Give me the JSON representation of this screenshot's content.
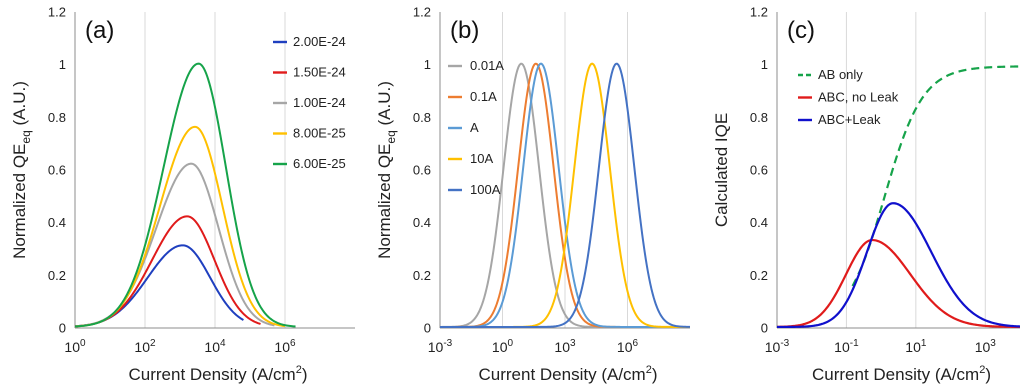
{
  "chart_data": [
    {
      "type": "line",
      "panel_label": "(a)",
      "xlabel": "Current Density (A/cm",
      "xlabel_sup": "2",
      "xlabel_tail": ")",
      "ylabel": "Normalized QE",
      "ylabel_sub": "eq",
      "ylabel_tail": " (A.U.)",
      "x_scale": "log",
      "xlim": [
        1,
        100000000.0
      ],
      "x_ticks": [
        {
          "base": "10",
          "exp": "0"
        },
        {
          "base": "10",
          "exp": "2"
        },
        {
          "base": "10",
          "exp": "4"
        },
        {
          "base": "10",
          "exp": "6"
        }
      ],
      "ylim": [
        0,
        1.2
      ],
      "y_ticks": [
        "0",
        "0.2",
        "0.4",
        "0.6",
        "0.8",
        "1",
        "1.2"
      ],
      "grid": "vertical",
      "legend_position": "top-right",
      "series": [
        {
          "name": "2.00E-24",
          "color": "#1f3fbf",
          "peak_x": 1200,
          "peak_y": 0.31,
          "x_end": 65000
        },
        {
          "name": "1.50E-24",
          "color": "#e01b1b",
          "peak_x": 1600,
          "peak_y": 0.42,
          "x_end": 200000
        },
        {
          "name": "1.00E-24",
          "color": "#a6a6a6",
          "peak_x": 2100,
          "peak_y": 0.62,
          "x_end": 500000
        },
        {
          "name": "8.00E-25",
          "color": "#ffc000",
          "peak_x": 2700,
          "peak_y": 0.76,
          "x_end": 1000000
        },
        {
          "name": "6.00E-25",
          "color": "#16a34a",
          "peak_x": 3400,
          "peak_y": 1.0,
          "x_end": 2000000
        }
      ]
    },
    {
      "type": "line",
      "panel_label": "(b)",
      "xlabel": "Current Density (A/cm",
      "xlabel_sup": "2",
      "xlabel_tail": ")",
      "ylabel": "Normalized QE",
      "ylabel_sub": "eq",
      "ylabel_tail": " (A.U.)",
      "x_scale": "log",
      "xlim": [
        0.001,
        1000000000.0
      ],
      "x_ticks": [
        {
          "base": "10",
          "exp": "-3"
        },
        {
          "base": "10",
          "exp": "0"
        },
        {
          "base": "10",
          "exp": "3"
        },
        {
          "base": "10",
          "exp": "6"
        }
      ],
      "ylim": [
        0,
        1.2
      ],
      "y_ticks": [
        "0",
        "0.2",
        "0.4",
        "0.6",
        "0.8",
        "1",
        "1.2"
      ],
      "grid": "vertical",
      "legend_position": "top-left",
      "series": [
        {
          "name": "0.01A",
          "color": "#a6a6a6",
          "peak_x": 8,
          "peak_y": 1.0
        },
        {
          "name": "0.1A",
          "color": "#ed7d31",
          "peak_x": 40,
          "peak_y": 1.0
        },
        {
          "name": "A",
          "color": "#5b9bd5",
          "peak_x": 70,
          "peak_y": 1.0
        },
        {
          "name": "10A",
          "color": "#ffc000",
          "peak_x": 20000,
          "peak_y": 1.0
        },
        {
          "name": "100A",
          "color": "#4472c4",
          "peak_x": 300000,
          "peak_y": 1.0
        }
      ]
    },
    {
      "type": "line",
      "panel_label": "(c)",
      "xlabel": "Current Density (A/cm",
      "xlabel_sup": "2",
      "xlabel_tail": ")",
      "ylabel": "Calculated IQE",
      "x_scale": "log",
      "xlim": [
        0.001,
        10000
      ],
      "x_ticks": [
        {
          "base": "10",
          "exp": "-3"
        },
        {
          "base": "10",
          "exp": "-1"
        },
        {
          "base": "10",
          "exp": "1"
        },
        {
          "base": "10",
          "exp": "3"
        }
      ],
      "ylim": [
        0,
        1.2
      ],
      "y_ticks": [
        "0",
        "0.2",
        "0.4",
        "0.6",
        "0.8",
        "1",
        "1.2"
      ],
      "grid": "vertical",
      "legend_position": "top-left",
      "series": [
        {
          "name": "AB only",
          "color": "#16a34a",
          "style": "dashed",
          "x_start": 0.15,
          "x_end": 10000,
          "peak_y": 0.99
        },
        {
          "name": "ABC, no Leak",
          "color": "#e01b1b",
          "peak_x": 0.55,
          "peak_y": 0.33
        },
        {
          "name": "ABC+Leak",
          "color": "#1010cc",
          "peak_x": 2.2,
          "peak_y": 0.47
        }
      ]
    }
  ]
}
